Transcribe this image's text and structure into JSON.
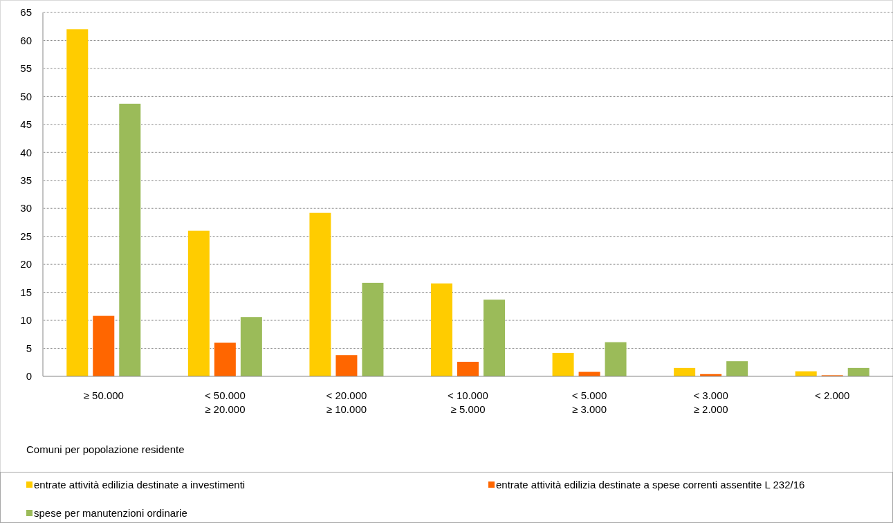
{
  "chart_data": {
    "type": "bar",
    "xlabel": "Comuni per popolazione residente",
    "categories": [
      "≥ 50.000",
      "< 50.000\n≥ 20.000",
      "< 20.000\n≥ 10.000",
      "< 10.000\n≥ 5.000",
      "< 5.000\n≥ 3.000",
      "< 3.000\n≥ 2.000",
      "< 2.000"
    ],
    "series": [
      {
        "name": "entrate attività edilizia destinate a investimenti",
        "color": "#ffcc00",
        "values": [
          62,
          26,
          29.2,
          16.6,
          4.2,
          1.5,
          0.9
        ]
      },
      {
        "name": "entrate attività edilizia destinate a spese correnti assentite L 232/16",
        "color": "#ff6600",
        "values": [
          10.8,
          6,
          3.8,
          2.6,
          0.8,
          0.4,
          0.2
        ]
      },
      {
        "name": "spese per manutenzioni ordinarie",
        "color": "#9bbb59",
        "values": [
          48.7,
          10.6,
          16.7,
          13.7,
          6.1,
          2.7,
          1.5
        ]
      }
    ],
    "ylim": [
      0,
      65
    ],
    "yticks": [
      0,
      5,
      10,
      15,
      20,
      25,
      30,
      35,
      40,
      45,
      50,
      55,
      60,
      65
    ],
    "grid": "y",
    "legend": "bottom"
  }
}
